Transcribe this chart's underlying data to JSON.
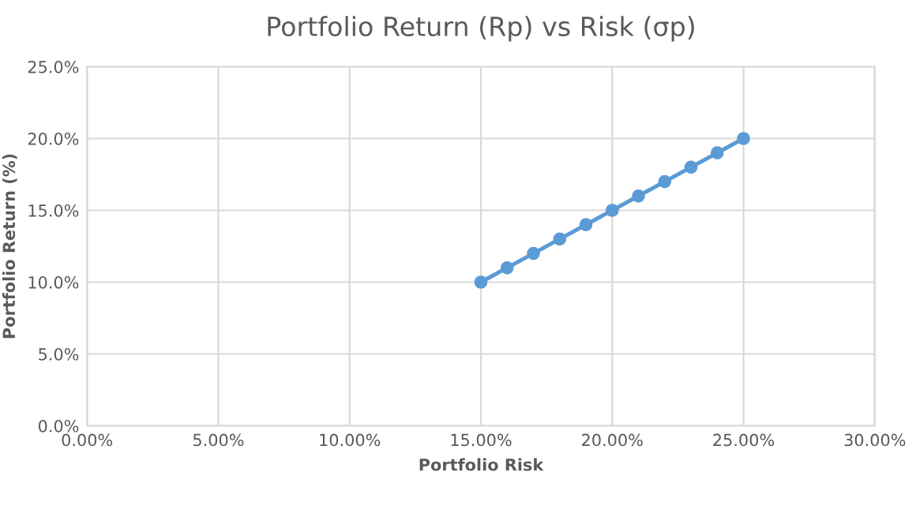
{
  "chart_data": {
    "type": "line",
    "title": "Portfolio Return (Rp) vs Risk (σp)",
    "xlabel": "Portfolio Risk",
    "ylabel": "Portfolio Return (%)",
    "x": [
      15,
      16,
      17,
      18,
      19,
      20,
      21,
      22,
      23,
      24,
      25
    ],
    "series": [
      {
        "color": "#5b9bd5",
        "values": [
          10,
          11,
          12,
          13,
          14,
          15,
          16,
          17,
          18,
          19,
          20
        ]
      }
    ],
    "xlim": [
      0,
      30
    ],
    "xticks": [
      {
        "value": 0,
        "label": "0.00%"
      },
      {
        "value": 5,
        "label": "5.00%"
      },
      {
        "value": 10,
        "label": "10.00%"
      },
      {
        "value": 15,
        "label": "15.00%"
      },
      {
        "value": 20,
        "label": "20.00%"
      },
      {
        "value": 25,
        "label": "25.00%"
      },
      {
        "value": 30,
        "label": "30.00%"
      }
    ],
    "ylim": [
      0,
      25
    ],
    "yticks": [
      {
        "value": 0,
        "label": "0.0%"
      },
      {
        "value": 5,
        "label": "5.0%"
      },
      {
        "value": 10,
        "label": "10.0%"
      },
      {
        "value": 15,
        "label": "15.0%"
      },
      {
        "value": 20,
        "label": "20.0%"
      },
      {
        "value": 25,
        "label": "25.0%"
      }
    ],
    "grid": true,
    "marker": "circle",
    "line_style": "solid",
    "legend": false
  }
}
